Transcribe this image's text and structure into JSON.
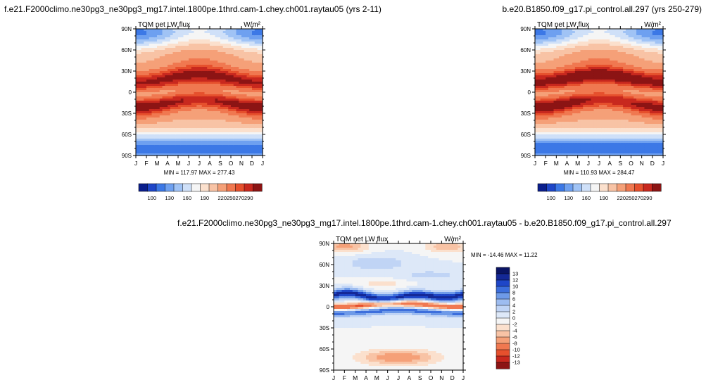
{
  "page": {
    "titles": {
      "left": "f.e21.F2000climo.ne30pg3_ne30pg3_mg17.intel.1800pe.1thrd.cam-1.chey.ch001.raytau05 (yrs 2-11)",
      "right": "b.e20.B1850.f09_g17.pi_control.all.297 (yrs 250-279)",
      "diff": "f.e21.F2000climo.ne30pg3_ne30pg3_mg17.intel.1800pe.1thrd.cam-1.chey.ch001.raytau05 - b.e20.B1850.f09_g17.pi_control.all.297"
    }
  },
  "chart_data": [
    {
      "type": "heatmap",
      "title": "TOM net LW flux",
      "units": "W/m²",
      "x_ticks": [
        "J",
        "F",
        "M",
        "A",
        "M",
        "J",
        "J",
        "A",
        "S",
        "O",
        "N",
        "D",
        "J"
      ],
      "y_ticks": [
        "90N",
        "60N",
        "30N",
        "0",
        "30S",
        "60S",
        "90S"
      ],
      "min_max_label": "MIN = 117.97 MAX = 277.43",
      "colorbar_levels": [
        100,
        130,
        160,
        190,
        220,
        250,
        270,
        290
      ],
      "colorbar_colors": [
        "#0a1e8c",
        "#1e46c8",
        "#3c78e6",
        "#6ea0f0",
        "#a0c3f5",
        "#cfe0f8",
        "#f5f5f5",
        "#fbe0cd",
        "#f8c3a5",
        "#f5a078",
        "#f07850",
        "#e6502d",
        "#c8281e",
        "#8c1414"
      ],
      "min": 117.97,
      "max": 277.43
    },
    {
      "type": "heatmap",
      "title": "TOM net LW flux",
      "units": "W/m²",
      "x_ticks": [
        "J",
        "F",
        "M",
        "A",
        "M",
        "J",
        "J",
        "A",
        "S",
        "O",
        "N",
        "D",
        "J"
      ],
      "y_ticks": [
        "90N",
        "60N",
        "30N",
        "0",
        "30S",
        "60S",
        "90S"
      ],
      "min_max_label": "MIN = 110.93 MAX = 284.47",
      "colorbar_levels": [
        100,
        130,
        160,
        190,
        220,
        250,
        270,
        290
      ],
      "colorbar_colors": [
        "#0a1e8c",
        "#1e46c8",
        "#3c78e6",
        "#6ea0f0",
        "#a0c3f5",
        "#cfe0f8",
        "#f5f5f5",
        "#fbe0cd",
        "#f8c3a5",
        "#f5a078",
        "#f07850",
        "#e6502d",
        "#c8281e",
        "#8c1414"
      ],
      "min": 110.93,
      "max": 284.47
    },
    {
      "type": "heatmap",
      "title": "TOM net LW flux",
      "units": "W/m²",
      "x_ticks": [
        "J",
        "F",
        "M",
        "A",
        "M",
        "J",
        "J",
        "A",
        "S",
        "O",
        "N",
        "D",
        "J"
      ],
      "y_ticks": [
        "90N",
        "60N",
        "30N",
        "0",
        "30S",
        "60S",
        "90S"
      ],
      "min_max_label": "MIN = -14.46 MAX =  11.22",
      "colorbar_levels": [
        "13",
        "12",
        "10",
        "8",
        "6",
        "4",
        "2",
        "0",
        "-2",
        "-4",
        "-6",
        "-8",
        "-10",
        "-12",
        "-13"
      ],
      "colorbar_colors": [
        "#8c1414",
        "#c8281e",
        "#e6502d",
        "#f07850",
        "#f5a078",
        "#f8c3a5",
        "#fbe0cd",
        "#f5f5f5",
        "#dde8f8",
        "#c0d4f5",
        "#9dbcf0",
        "#6e9ae8",
        "#3c6edc",
        "#1e46c8",
        "#142896",
        "#0a1464"
      ],
      "min": -14.46,
      "max": 11.22
    }
  ]
}
